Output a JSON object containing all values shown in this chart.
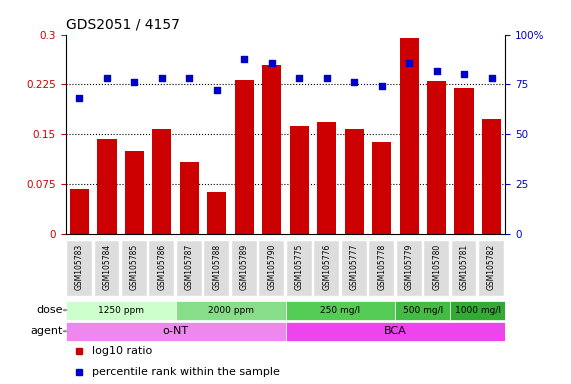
{
  "title": "GDS2051 / 4157",
  "samples": [
    "GSM105783",
    "GSM105784",
    "GSM105785",
    "GSM105786",
    "GSM105787",
    "GSM105788",
    "GSM105789",
    "GSM105790",
    "GSM105775",
    "GSM105776",
    "GSM105777",
    "GSM105778",
    "GSM105779",
    "GSM105780",
    "GSM105781",
    "GSM105782"
  ],
  "log10_ratio": [
    0.068,
    0.143,
    0.125,
    0.158,
    0.108,
    0.063,
    0.232,
    0.255,
    0.163,
    0.168,
    0.158,
    0.138,
    0.295,
    0.23,
    0.22,
    0.173
  ],
  "percentile_rank": [
    68,
    78,
    76,
    78,
    78,
    72,
    88,
    86,
    78,
    78,
    76,
    74,
    86,
    82,
    80,
    78
  ],
  "bar_color": "#cc0000",
  "dot_color": "#0000cc",
  "ylim_left": [
    0,
    0.3
  ],
  "ylim_right": [
    0,
    100
  ],
  "yticks_left": [
    0,
    0.075,
    0.15,
    0.225,
    0.3
  ],
  "yticks_right": [
    0,
    25,
    50,
    75,
    100
  ],
  "ytick_labels_left": [
    "0",
    "0.075",
    "0.15",
    "0.225",
    "0.3"
  ],
  "ytick_labels_right": [
    "0",
    "25",
    "50",
    "75",
    "100%"
  ],
  "hlines": [
    0.075,
    0.15,
    0.225
  ],
  "dose_groups": [
    {
      "label": "1250 ppm",
      "start": 0,
      "end": 4,
      "color": "#ccffcc"
    },
    {
      "label": "2000 ppm",
      "start": 4,
      "end": 8,
      "color": "#88dd88"
    },
    {
      "label": "250 mg/l",
      "start": 8,
      "end": 12,
      "color": "#55cc55"
    },
    {
      "label": "500 mg/l",
      "start": 12,
      "end": 14,
      "color": "#44bb44"
    },
    {
      "label": "1000 mg/l",
      "start": 14,
      "end": 16,
      "color": "#33aa33"
    }
  ],
  "agent_groups": [
    {
      "label": "o-NT",
      "start": 0,
      "end": 8,
      "color": "#ee88ee"
    },
    {
      "label": "BCA",
      "start": 8,
      "end": 16,
      "color": "#ee44ee"
    }
  ],
  "legend_items": [
    {
      "color": "#cc0000",
      "label": "log10 ratio"
    },
    {
      "color": "#0000cc",
      "label": "percentile rank within the sample"
    }
  ],
  "background_color": "#ffffff",
  "tick_label_color_left": "#cc0000",
  "tick_label_color_right": "#0000cc"
}
